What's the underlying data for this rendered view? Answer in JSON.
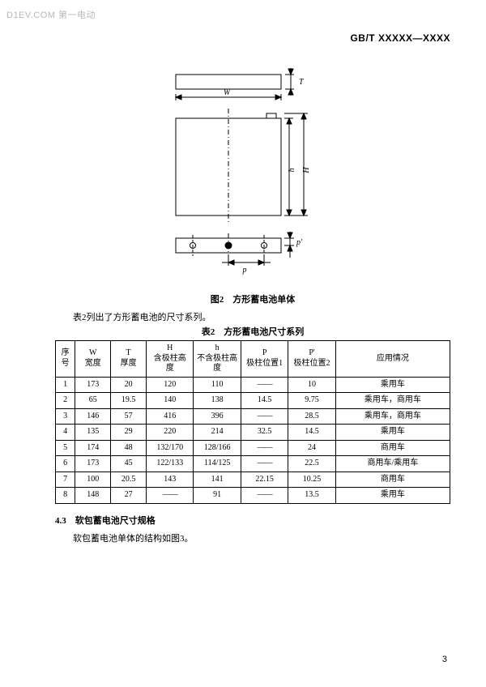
{
  "watermark": "D1EV.COM 第一电动",
  "header_code": "GB/T XXXXX—XXXX",
  "diagram": {
    "labels": {
      "W": "W",
      "T": "T",
      "h": "h",
      "H": "H",
      "p": "p",
      "pp": "p'"
    },
    "colors": {
      "stroke": "#000000",
      "dash": "#000000",
      "bg": "#ffffff"
    },
    "stroke_width": 1
  },
  "fig_caption": "图2　方形蓄电池单体",
  "intro": "表2列出了方形蓄电池的尺寸系列。",
  "table_caption": "表2　方形蓄电池尺寸系列",
  "table": {
    "headers": {
      "seq": {
        "l1": "序",
        "l2": "号"
      },
      "W": {
        "l1": "W",
        "l2": "宽度"
      },
      "T": {
        "l1": "T",
        "l2": "厚度"
      },
      "H": {
        "l1": "H",
        "l2": "含极柱高",
        "l3": "度"
      },
      "h": {
        "l1": "h",
        "l2": "不含极柱高",
        "l3": "度"
      },
      "P": {
        "l1": "P",
        "l2": "极柱位置1"
      },
      "Pp": {
        "l1": "P'",
        "l2": "极柱位置2"
      },
      "app": "应用情况"
    },
    "rows": [
      {
        "seq": "1",
        "W": "173",
        "T": "20",
        "H": "120",
        "h": "110",
        "P": "——",
        "Pp": "10",
        "app": "乘用车"
      },
      {
        "seq": "2",
        "W": "65",
        "T": "19.5",
        "H": "140",
        "h": "138",
        "P": "14.5",
        "Pp": "9.75",
        "app": "乘用车，商用车"
      },
      {
        "seq": "3",
        "W": "146",
        "T": "57",
        "H": "416",
        "h": "396",
        "P": "——",
        "Pp": "28.5",
        "app": "乘用车，商用车"
      },
      {
        "seq": "4",
        "W": "135",
        "T": "29",
        "H": "220",
        "h": "214",
        "P": "32.5",
        "Pp": "14.5",
        "app": "乘用车"
      },
      {
        "seq": "5",
        "W": "174",
        "T": "48",
        "H": "132/170",
        "h": "128/166",
        "P": "——",
        "Pp": "24",
        "app": "商用车"
      },
      {
        "seq": "6",
        "W": "173",
        "T": "45",
        "H": "122/133",
        "h": "114/125",
        "P": "——",
        "Pp": "22.5",
        "app": "商用车/乘用车"
      },
      {
        "seq": "7",
        "W": "100",
        "T": "20.5",
        "H": "143",
        "h": "141",
        "P": "22.15",
        "Pp": "10.25",
        "app": "商用车"
      },
      {
        "seq": "8",
        "W": "148",
        "T": "27",
        "H": "——",
        "h": "91",
        "P": "——",
        "Pp": "13.5",
        "app": "乘用车"
      }
    ]
  },
  "section_heading": "4.3　软包蓄电池尺寸规格",
  "section_text": "软包蓄电池单体的结构如图3。",
  "page_number": "3"
}
